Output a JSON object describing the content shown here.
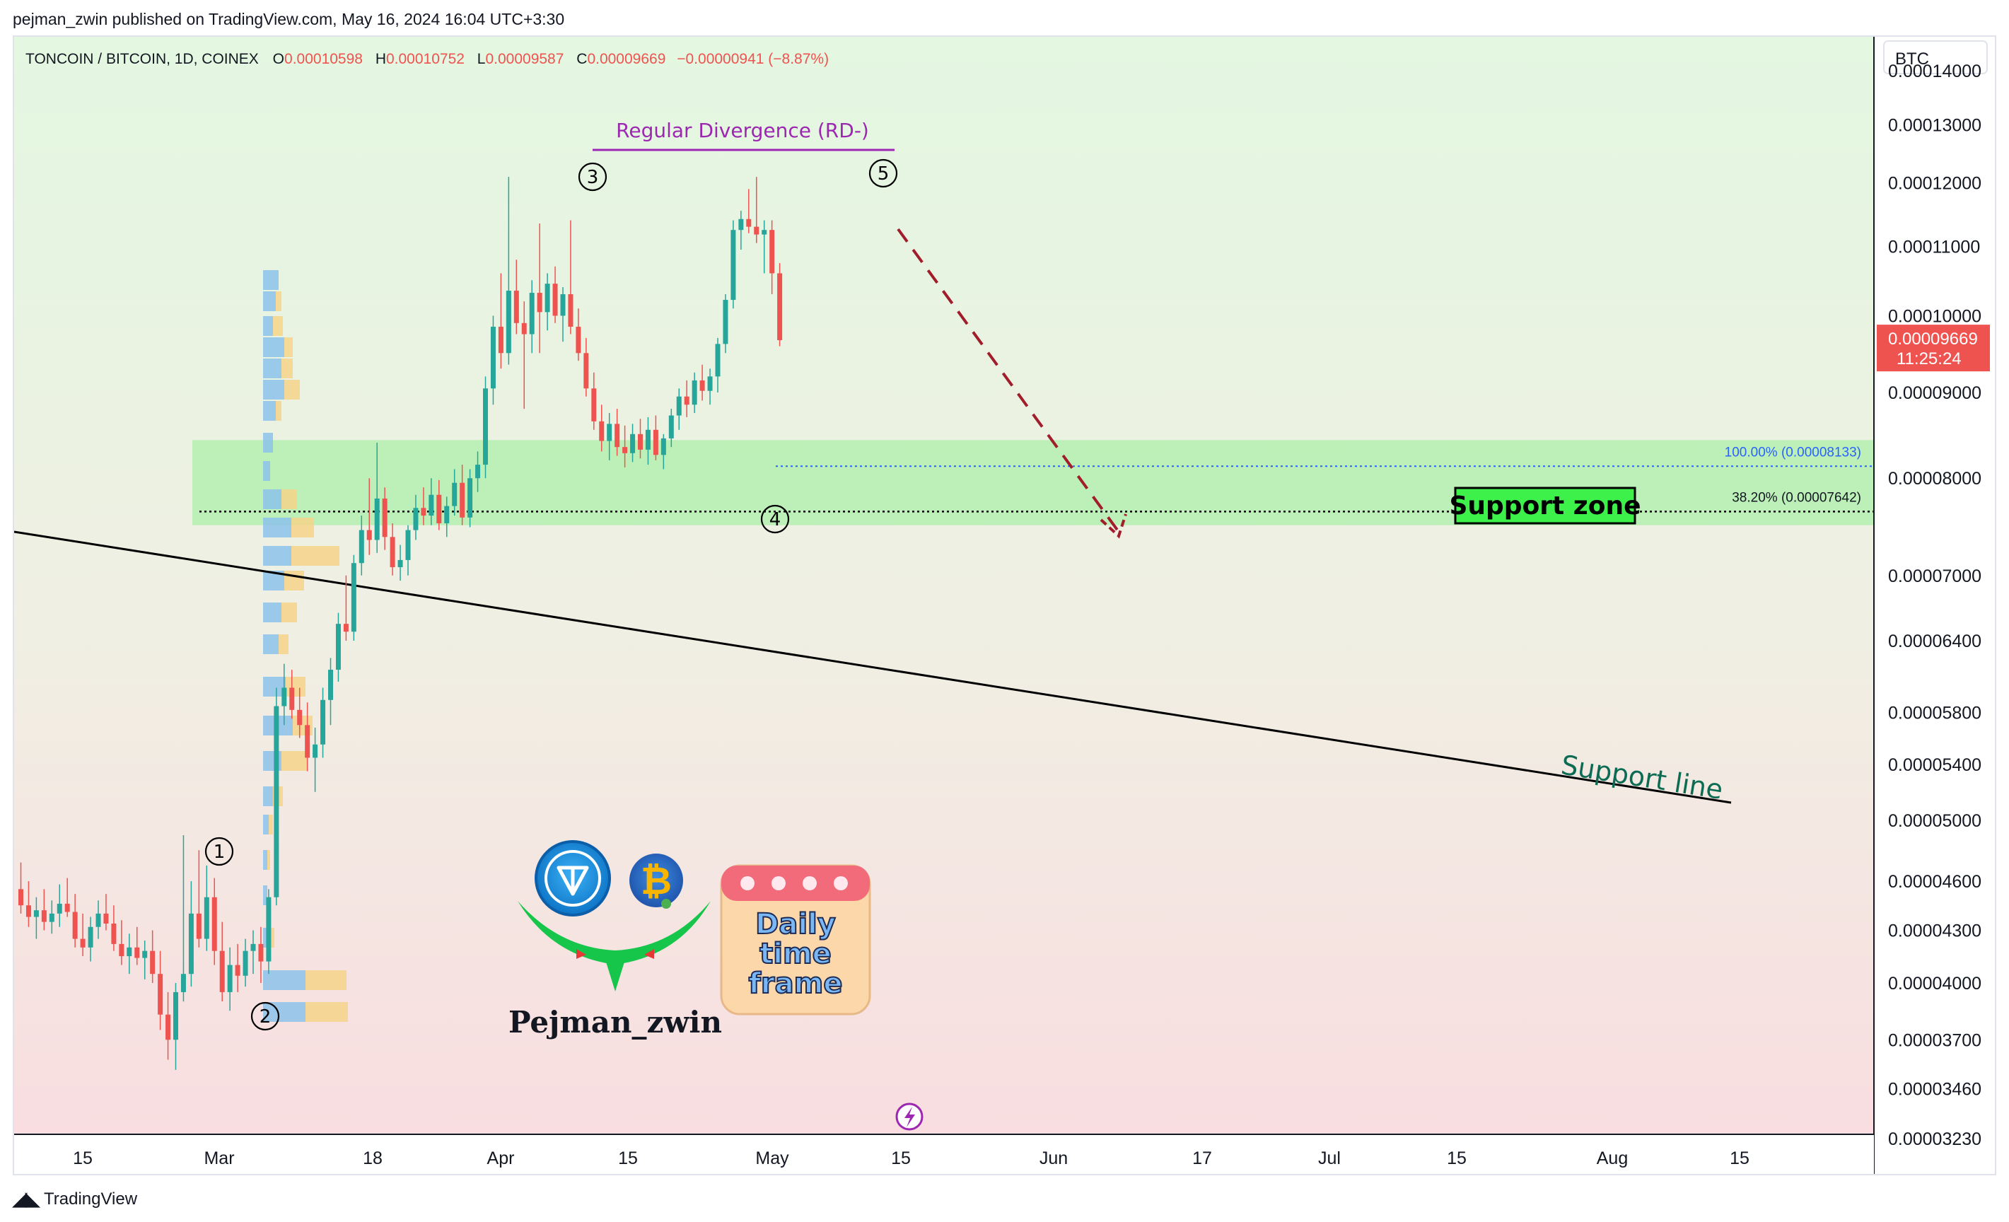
{
  "header": {
    "publish_line": "pejman_zwin published on TradingView.com, May 16, 2024 16:04 UTC+3:30"
  },
  "legend": {
    "symbol": "TONCOIN / BITCOIN, 1D, COINEX",
    "open_label": "O",
    "open": "0.00010598",
    "high_label": "H",
    "high": "0.00010752",
    "low_label": "L",
    "low": "0.00009587",
    "close_label": "C",
    "close": "0.00009669",
    "change": "−0.00000941 (−8.87%)"
  },
  "price_axis": {
    "currency": "BTC",
    "ticks": [
      "0.00014000",
      "0.00013000",
      "0.00012000",
      "0.00011000",
      "0.00010000",
      "0.00009000",
      "0.00008000",
      "0.00007000",
      "0.00006400",
      "0.00005800",
      "0.00005400",
      "0.00005000",
      "0.00004600",
      "0.00004300",
      "0.00004000",
      "0.00003700",
      "0.00003460",
      "0.00003230"
    ],
    "last_price": "0.00009669",
    "countdown": "11:25:24"
  },
  "time_axis": {
    "ticks": [
      "15",
      "Mar",
      "18",
      "Apr",
      "15",
      "May",
      "15",
      "Jun",
      "17",
      "Jul",
      "15",
      "Aug",
      "15"
    ]
  },
  "annotations": {
    "divergence": "Regular Divergence (RD-)",
    "support_zone": "Support zone",
    "support_line": "Support line",
    "fib_100": "100.00% (0.00008133)",
    "fib_382": "38.20% (0.00007642)",
    "waves": [
      "1",
      "2",
      "3",
      "4",
      "5"
    ]
  },
  "branding": {
    "author": "Pejman_zwin",
    "badge_lines": [
      "Daily",
      "time",
      "frame"
    ],
    "footer": "TradingView"
  },
  "colors": {
    "up": "#26a69a",
    "down": "#ef5350",
    "zone": "#b7efb2",
    "divergence": "#9c27b0",
    "support_line_text": "#0b6b53",
    "bg_top": "#e3f7e1",
    "bg_bottom": "#f9dde0"
  },
  "chart_data": {
    "type": "candlestick",
    "log_scale": true,
    "y_axis_labels_btc": [
      0.00014,
      0.00013,
      0.00012,
      0.00011,
      0.0001,
      9e-05,
      8e-05,
      7e-05,
      6.4e-05,
      5.8e-05,
      5.4e-05,
      5e-05,
      4.6e-05,
      4.3e-05,
      4e-05,
      3.7e-05,
      3.46e-05,
      3.23e-05
    ],
    "x_axis_labels": [
      "15",
      "Mar",
      "18",
      "Apr",
      "15",
      "May",
      "15",
      "Jun",
      "17",
      "Jul",
      "15",
      "Aug",
      "15"
    ],
    "candles": [
      {
        "o": 4.55e-05,
        "h": 4.72e-05,
        "l": 4.4e-05,
        "c": 4.45e-05
      },
      {
        "o": 4.45e-05,
        "h": 4.6e-05,
        "l": 4.32e-05,
        "c": 4.38e-05
      },
      {
        "o": 4.38e-05,
        "h": 4.5e-05,
        "l": 4.25e-05,
        "c": 4.42e-05
      },
      {
        "o": 4.42e-05,
        "h": 4.55e-05,
        "l": 4.3e-05,
        "c": 4.35e-05
      },
      {
        "o": 4.35e-05,
        "h": 4.48e-05,
        "l": 4.28e-05,
        "c": 4.4e-05
      },
      {
        "o": 4.4e-05,
        "h": 4.58e-05,
        "l": 4.32e-05,
        "c": 4.46e-05
      },
      {
        "o": 4.46e-05,
        "h": 4.62e-05,
        "l": 4.38e-05,
        "c": 4.41e-05
      },
      {
        "o": 4.41e-05,
        "h": 4.52e-05,
        "l": 4.2e-05,
        "c": 4.25e-05
      },
      {
        "o": 4.25e-05,
        "h": 4.4e-05,
        "l": 4.15e-05,
        "c": 4.2e-05
      },
      {
        "o": 4.2e-05,
        "h": 4.38e-05,
        "l": 4.12e-05,
        "c": 4.32e-05
      },
      {
        "o": 4.32e-05,
        "h": 4.48e-05,
        "l": 4.25e-05,
        "c": 4.4e-05
      },
      {
        "o": 4.4e-05,
        "h": 4.52e-05,
        "l": 4.3e-05,
        "c": 4.34e-05
      },
      {
        "o": 4.34e-05,
        "h": 4.45e-05,
        "l": 4.18e-05,
        "c": 4.22e-05
      },
      {
        "o": 4.22e-05,
        "h": 4.36e-05,
        "l": 4.1e-05,
        "c": 4.15e-05
      },
      {
        "o": 4.15e-05,
        "h": 4.28e-05,
        "l": 4.05e-05,
        "c": 4.2e-05
      },
      {
        "o": 4.2e-05,
        "h": 4.32e-05,
        "l": 4.1e-05,
        "c": 4.14e-05
      },
      {
        "o": 4.14e-05,
        "h": 4.24e-05,
        "l": 4.02e-05,
        "c": 4.18e-05
      },
      {
        "o": 4.18e-05,
        "h": 4.3e-05,
        "l": 4e-05,
        "c": 4.05e-05
      },
      {
        "o": 4.05e-05,
        "h": 4.18e-05,
        "l": 3.75e-05,
        "c": 3.83e-05
      },
      {
        "o": 3.83e-05,
        "h": 3.95e-05,
        "l": 3.6e-05,
        "c": 3.7e-05
      },
      {
        "o": 3.7e-05,
        "h": 4e-05,
        "l": 3.55e-05,
        "c": 3.95e-05
      },
      {
        "o": 3.95e-05,
        "h": 4.9e-05,
        "l": 3.9e-05,
        "c": 4.05e-05
      },
      {
        "o": 4.05e-05,
        "h": 4.6e-05,
        "l": 3.98e-05,
        "c": 4.4e-05
      },
      {
        "o": 4.4e-05,
        "h": 4.8e-05,
        "l": 4.2e-05,
        "c": 4.25e-05
      },
      {
        "o": 4.25e-05,
        "h": 4.7e-05,
        "l": 4.18e-05,
        "c": 4.5e-05
      },
      {
        "o": 4.5e-05,
        "h": 4.62e-05,
        "l": 4.1e-05,
        "c": 4.18e-05
      },
      {
        "o": 4.18e-05,
        "h": 4.35e-05,
        "l": 3.9e-05,
        "c": 3.95e-05
      },
      {
        "o": 3.95e-05,
        "h": 4.2e-05,
        "l": 3.85e-05,
        "c": 4.1e-05
      },
      {
        "o": 4.1e-05,
        "h": 4.22e-05,
        "l": 3.95e-05,
        "c": 4.04e-05
      },
      {
        "o": 4.04e-05,
        "h": 4.25e-05,
        "l": 3.98e-05,
        "c": 4.18e-05
      },
      {
        "o": 4.18e-05,
        "h": 4.3e-05,
        "l": 4.05e-05,
        "c": 4.22e-05
      },
      {
        "o": 4.22e-05,
        "h": 4.32e-05,
        "l": 4e-05,
        "c": 4.12e-05
      },
      {
        "o": 4.12e-05,
        "h": 4.55e-05,
        "l": 4.05e-05,
        "c": 4.5e-05
      },
      {
        "o": 4.5e-05,
        "h": 6e-05,
        "l": 4.45e-05,
        "c": 5.85e-05
      },
      {
        "o": 5.85e-05,
        "h": 6.2e-05,
        "l": 5.7e-05,
        "c": 6e-05
      },
      {
        "o": 6e-05,
        "h": 6.15e-05,
        "l": 5.75e-05,
        "c": 5.82e-05
      },
      {
        "o": 5.82e-05,
        "h": 6e-05,
        "l": 5.6e-05,
        "c": 5.7e-05
      },
      {
        "o": 5.7e-05,
        "h": 5.88e-05,
        "l": 5.35e-05,
        "c": 5.45e-05
      },
      {
        "o": 5.45e-05,
        "h": 5.68e-05,
        "l": 5.2e-05,
        "c": 5.55e-05
      },
      {
        "o": 5.55e-05,
        "h": 6e-05,
        "l": 5.45e-05,
        "c": 5.9e-05
      },
      {
        "o": 5.9e-05,
        "h": 6.25e-05,
        "l": 5.7e-05,
        "c": 6.15e-05
      },
      {
        "o": 6.15e-05,
        "h": 6.65e-05,
        "l": 6.05e-05,
        "c": 6.55e-05
      },
      {
        "o": 6.55e-05,
        "h": 7e-05,
        "l": 6.4e-05,
        "c": 6.48e-05
      },
      {
        "o": 6.48e-05,
        "h": 7.2e-05,
        "l": 6.4e-05,
        "c": 7.12e-05
      },
      {
        "o": 7.12e-05,
        "h": 7.6e-05,
        "l": 7e-05,
        "c": 7.45e-05
      },
      {
        "o": 7.45e-05,
        "h": 8e-05,
        "l": 7.2e-05,
        "c": 7.35e-05
      },
      {
        "o": 7.35e-05,
        "h": 8.4e-05,
        "l": 7.22e-05,
        "c": 7.78e-05
      },
      {
        "o": 7.78e-05,
        "h": 7.9e-05,
        "l": 7.25e-05,
        "c": 7.38e-05
      },
      {
        "o": 7.38e-05,
        "h": 7.52e-05,
        "l": 7e-05,
        "c": 7.08e-05
      },
      {
        "o": 7.08e-05,
        "h": 7.3e-05,
        "l": 6.95e-05,
        "c": 7.15e-05
      },
      {
        "o": 7.15e-05,
        "h": 7.5e-05,
        "l": 7e-05,
        "c": 7.45e-05
      },
      {
        "o": 7.45e-05,
        "h": 7.82e-05,
        "l": 7.35e-05,
        "c": 7.68e-05
      },
      {
        "o": 7.68e-05,
        "h": 7.9e-05,
        "l": 7.5e-05,
        "c": 7.6e-05
      },
      {
        "o": 7.6e-05,
        "h": 8e-05,
        "l": 7.5e-05,
        "c": 7.82e-05
      },
      {
        "o": 7.82e-05,
        "h": 7.98e-05,
        "l": 7.45e-05,
        "c": 7.52e-05
      },
      {
        "o": 7.52e-05,
        "h": 7.8e-05,
        "l": 7.38e-05,
        "c": 7.7e-05
      },
      {
        "o": 7.7e-05,
        "h": 8.1e-05,
        "l": 7.6e-05,
        "c": 7.95e-05
      },
      {
        "o": 7.95e-05,
        "h": 8.15e-05,
        "l": 7.5e-05,
        "c": 7.58e-05
      },
      {
        "o": 7.58e-05,
        "h": 8.1e-05,
        "l": 7.48e-05,
        "c": 8e-05
      },
      {
        "o": 8e-05,
        "h": 8.3e-05,
        "l": 7.85e-05,
        "c": 8.15e-05
      },
      {
        "o": 8.15e-05,
        "h": 9.2e-05,
        "l": 8e-05,
        "c": 9.05e-05
      },
      {
        "o": 9.05e-05,
        "h": 0.0001,
        "l": 8.85e-05,
        "c": 9.85e-05
      },
      {
        "o": 9.85e-05,
        "h": 0.000106,
        "l": 9.3e-05,
        "c": 9.5e-05
      },
      {
        "o": 9.5e-05,
        "h": 0.000121,
        "l": 9.35e-05,
        "c": 0.0001035
      },
      {
        "o": 0.0001035,
        "h": 0.000108,
        "l": 9.75e-05,
        "c": 9.9e-05
      },
      {
        "o": 9.9e-05,
        "h": 0.000102,
        "l": 8.8e-05,
        "c": 9.75e-05
      },
      {
        "o": 9.75e-05,
        "h": 0.000105,
        "l": 9.5e-05,
        "c": 0.0001032
      },
      {
        "o": 0.0001032,
        "h": 0.0001135,
        "l": 9.5e-05,
        "c": 0.0001005
      },
      {
        "o": 0.0001005,
        "h": 0.000106,
        "l": 9.8e-05,
        "c": 0.0001045
      },
      {
        "o": 0.0001045,
        "h": 0.000107,
        "l": 9.9e-05,
        "c": 0.0001
      },
      {
        "o": 0.0001,
        "h": 0.000104,
        "l": 9.65e-05,
        "c": 0.000103
      },
      {
        "o": 0.000103,
        "h": 0.000114,
        "l": 9.75e-05,
        "c": 9.85e-05
      },
      {
        "o": 9.85e-05,
        "h": 0.000101,
        "l": 9.4e-05,
        "c": 9.5e-05
      },
      {
        "o": 9.5e-05,
        "h": 9.7e-05,
        "l": 8.95e-05,
        "c": 9.05e-05
      },
      {
        "o": 9.05e-05,
        "h": 9.25e-05,
        "l": 8.55e-05,
        "c": 8.65e-05
      },
      {
        "o": 8.65e-05,
        "h": 8.85e-05,
        "l": 8.3e-05,
        "c": 8.42e-05
      },
      {
        "o": 8.42e-05,
        "h": 8.75e-05,
        "l": 8.2e-05,
        "c": 8.62e-05
      },
      {
        "o": 8.62e-05,
        "h": 8.8e-05,
        "l": 8.25e-05,
        "c": 8.35e-05
      },
      {
        "o": 8.35e-05,
        "h": 8.6e-05,
        "l": 8.12e-05,
        "c": 8.28e-05
      },
      {
        "o": 8.28e-05,
        "h": 8.62e-05,
        "l": 8.18e-05,
        "c": 8.5e-05
      },
      {
        "o": 8.5e-05,
        "h": 8.68e-05,
        "l": 8.22e-05,
        "c": 8.32e-05
      },
      {
        "o": 8.32e-05,
        "h": 8.7e-05,
        "l": 8.15e-05,
        "c": 8.55e-05
      },
      {
        "o": 8.55e-05,
        "h": 8.72e-05,
        "l": 8.2e-05,
        "c": 8.26e-05
      },
      {
        "o": 8.26e-05,
        "h": 8.5e-05,
        "l": 8.1e-05,
        "c": 8.45e-05
      },
      {
        "o": 8.45e-05,
        "h": 8.8e-05,
        "l": 8.35e-05,
        "c": 8.72e-05
      },
      {
        "o": 8.72e-05,
        "h": 9.05e-05,
        "l": 8.55e-05,
        "c": 8.95e-05
      },
      {
        "o": 8.95e-05,
        "h": 9.15e-05,
        "l": 8.7e-05,
        "c": 8.85e-05
      },
      {
        "o": 8.85e-05,
        "h": 9.25e-05,
        "l": 8.75e-05,
        "c": 9.15e-05
      },
      {
        "o": 9.15e-05,
        "h": 9.35e-05,
        "l": 8.9e-05,
        "c": 9.02e-05
      },
      {
        "o": 9.02e-05,
        "h": 9.3e-05,
        "l": 8.85e-05,
        "c": 9.2e-05
      },
      {
        "o": 9.2e-05,
        "h": 9.7e-05,
        "l": 9e-05,
        "c": 9.62e-05
      },
      {
        "o": 9.62e-05,
        "h": 0.000103,
        "l": 9.5e-05,
        "c": 0.0001022
      },
      {
        "o": 0.0001022,
        "h": 0.000114,
        "l": 0.000101,
        "c": 0.0001125
      },
      {
        "o": 0.0001125,
        "h": 0.0001155,
        "l": 0.0001095,
        "c": 0.0001142
      },
      {
        "o": 0.0001142,
        "h": 0.000119,
        "l": 0.000112,
        "c": 0.000113
      },
      {
        "o": 0.000113,
        "h": 0.000121,
        "l": 0.0001105,
        "c": 0.0001118
      },
      {
        "o": 0.0001118,
        "h": 0.000114,
        "l": 0.000106,
        "c": 0.0001125
      },
      {
        "o": 0.0001125,
        "h": 0.000114,
        "l": 0.000103,
        "c": 0.000106
      },
      {
        "o": 0.000106,
        "h": 0.0001075,
        "l": 9.59e-05,
        "c": 9.67e-05
      }
    ],
    "support_zone": {
      "low": 7.5e-05,
      "high": 8.43e-05
    },
    "fib_levels": [
      {
        "pct": "100.00%",
        "price": 8.133e-05
      },
      {
        "pct": "38.20%",
        "price": 7.642e-05
      }
    ],
    "last_price": 9.669e-05
  }
}
